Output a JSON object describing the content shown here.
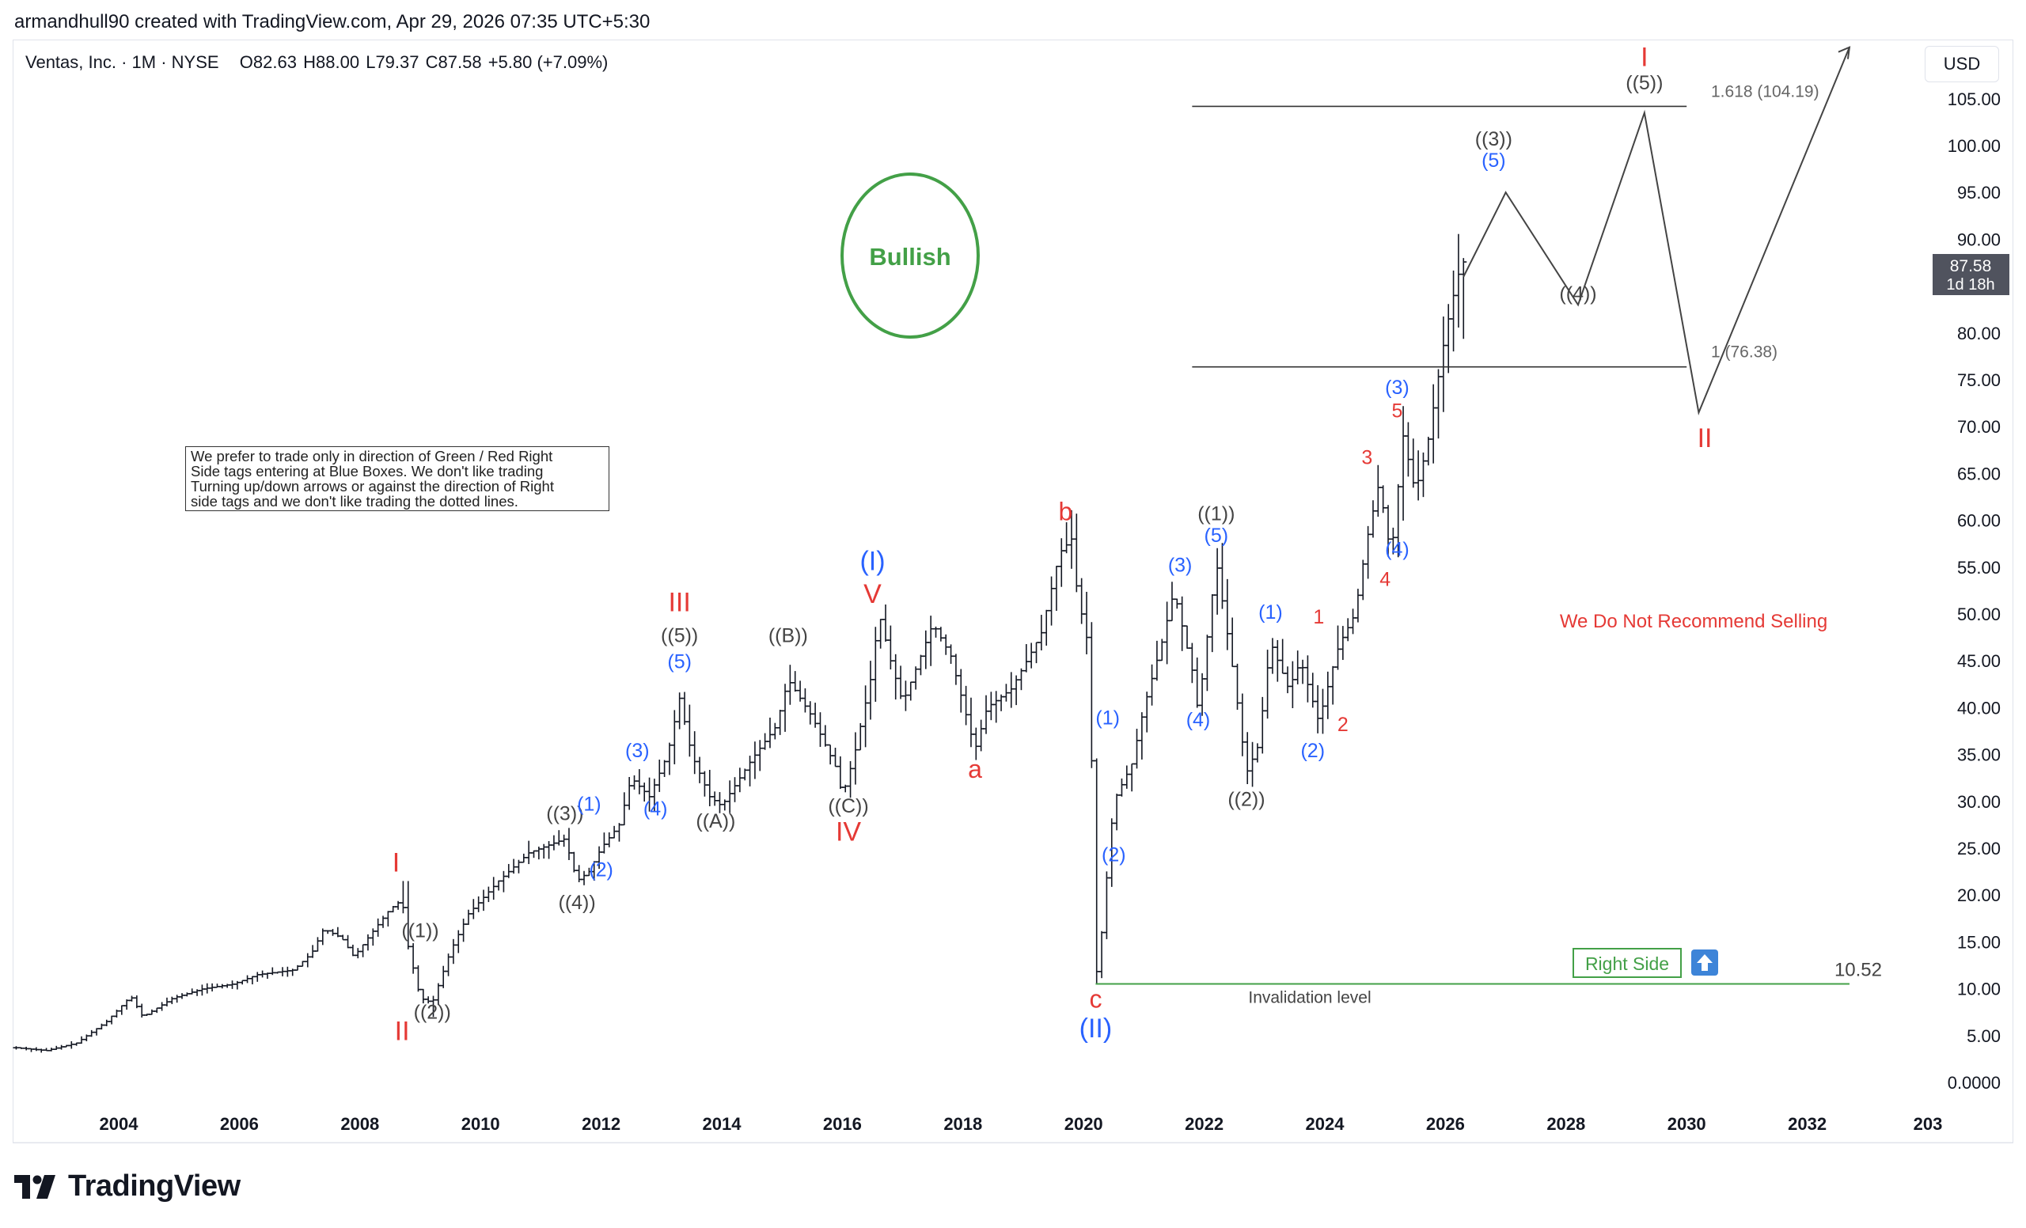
{
  "header": {
    "attribution": "armandhull90 created with TradingView.com, Apr 29, 2026 07:35 UTC+5:30"
  },
  "symbol": {
    "name": "Ventas, Inc. · 1M · NYSE",
    "open_label": "O",
    "open": "82.63",
    "high_label": "H",
    "high": "88.00",
    "low_label": "L",
    "low": "79.37",
    "close_label": "C",
    "close": "87.58",
    "change": "+5.80 (+7.09%)"
  },
  "currency": "USD",
  "footer": {
    "brand": "TradingView"
  },
  "note_lines": [
    "We prefer to trade only in direction of Green / Red Right",
    "Side tags entering at Blue Boxes. We don't like trading",
    "Turning up/down arrows or against the direction of Right",
    "side tags and we don't like trading the dotted lines."
  ],
  "chart_data": {
    "type": "ohlc",
    "title": "Ventas, Inc. · 1M · NYSE",
    "x_ticks": [
      "2004",
      "2006",
      "2008",
      "2010",
      "2012",
      "2014",
      "2016",
      "2018",
      "2020",
      "2022",
      "2024",
      "2026",
      "2028",
      "2030",
      "2032",
      "203"
    ],
    "y_ticks": [
      "105.00",
      "100.00",
      "95.00",
      "90.00",
      "80.00",
      "75.00",
      "70.00",
      "65.00",
      "60.00",
      "55.00",
      "50.00",
      "45.00",
      "40.00",
      "35.00",
      "30.00",
      "25.00",
      "20.00",
      "15.00",
      "10.00",
      "5.00",
      "0.0000"
    ],
    "ylim": [
      -1.2,
      111.5
    ],
    "price_series": [
      [
        2002.3,
        3.7
      ],
      [
        2002.8,
        3.4
      ],
      [
        2003.3,
        4.2
      ],
      [
        2003.8,
        6.5
      ],
      [
        2004.2,
        9.2
      ],
      [
        2004.4,
        7.0
      ],
      [
        2004.9,
        9.0
      ],
      [
        2005.4,
        10.0
      ],
      [
        2005.9,
        10.5
      ],
      [
        2006.3,
        11.5
      ],
      [
        2006.9,
        12.0
      ],
      [
        2007.2,
        13.8
      ],
      [
        2007.4,
        16.4
      ],
      [
        2007.7,
        15.4
      ],
      [
        2007.9,
        13.4
      ],
      [
        2008.2,
        16.0
      ],
      [
        2008.5,
        18.5
      ],
      [
        2008.7,
        19.5
      ],
      [
        2008.8,
        14.5
      ],
      [
        2009.0,
        9.0
      ],
      [
        2009.2,
        8.5
      ],
      [
        2009.5,
        14.0
      ],
      [
        2009.8,
        18.0
      ],
      [
        2010.3,
        21.5
      ],
      [
        2010.8,
        24.5
      ],
      [
        2011.2,
        25.5
      ],
      [
        2011.4,
        26.0
      ],
      [
        2011.6,
        21.5
      ],
      [
        2011.8,
        22.5
      ],
      [
        2012.0,
        25.0
      ],
      [
        2012.3,
        27.5
      ],
      [
        2012.5,
        32.5
      ],
      [
        2012.8,
        30.5
      ],
      [
        2013.1,
        35.0
      ],
      [
        2013.3,
        41.0
      ],
      [
        2013.5,
        35.0
      ],
      [
        2013.8,
        30.5
      ],
      [
        2014.0,
        29.5
      ],
      [
        2014.5,
        34.5
      ],
      [
        2014.9,
        38.0
      ],
      [
        2015.1,
        43.0
      ],
      [
        2015.5,
        39.0
      ],
      [
        2015.9,
        33.5
      ],
      [
        2016.0,
        30.5
      ],
      [
        2016.2,
        35.0
      ],
      [
        2016.5,
        44.0
      ],
      [
        2016.6,
        50.3
      ],
      [
        2016.8,
        45.0
      ],
      [
        2017.0,
        40.5
      ],
      [
        2017.3,
        45.5
      ],
      [
        2017.5,
        49.0
      ],
      [
        2017.8,
        45.5
      ],
      [
        2018.0,
        40.5
      ],
      [
        2018.2,
        35.5
      ],
      [
        2018.4,
        40.0
      ],
      [
        2018.8,
        42.0
      ],
      [
        2019.1,
        45.5
      ],
      [
        2019.3,
        48.0
      ],
      [
        2019.6,
        56.5
      ],
      [
        2019.8,
        58.0
      ],
      [
        2019.9,
        52.0
      ],
      [
        2020.1,
        46.0
      ],
      [
        2020.2,
        11.0
      ],
      [
        2020.3,
        16.0
      ],
      [
        2020.5,
        30.0
      ],
      [
        2020.8,
        34.0
      ],
      [
        2021.0,
        40.0
      ],
      [
        2021.3,
        47.0
      ],
      [
        2021.5,
        52.5
      ],
      [
        2021.8,
        44.0
      ],
      [
        2021.9,
        39.5
      ],
      [
        2022.2,
        55.6
      ],
      [
        2022.5,
        43.0
      ],
      [
        2022.7,
        33.0
      ],
      [
        2022.9,
        36.0
      ],
      [
        2023.1,
        47.0
      ],
      [
        2023.4,
        42.0
      ],
      [
        2023.6,
        45.0
      ],
      [
        2023.9,
        38.5
      ],
      [
        2024.2,
        46.0
      ],
      [
        2024.3,
        47.5
      ],
      [
        2024.5,
        50.0
      ],
      [
        2024.7,
        58.0
      ],
      [
        2024.9,
        64.0
      ],
      [
        2025.1,
        56.0
      ],
      [
        2025.3,
        69.0
      ],
      [
        2025.5,
        63.0
      ],
      [
        2025.7,
        68.0
      ],
      [
        2025.9,
        76.0
      ],
      [
        2026.0,
        80.0
      ],
      [
        2026.2,
        86.0
      ],
      [
        2026.3,
        87.58
      ]
    ],
    "projection_path": [
      [
        2026.3,
        86.0
      ],
      [
        2027.0,
        95.0
      ],
      [
        2028.2,
        83.0
      ],
      [
        2029.3,
        103.5
      ],
      [
        2030.2,
        71.5
      ],
      [
        2032.7,
        110.5
      ]
    ],
    "hlines": [
      {
        "label": "1.618 (104.19)",
        "value": 104.19
      },
      {
        "label": "1 (76.38)",
        "value": 76.38
      },
      {
        "label": "Invalidation level",
        "value": 10.52,
        "value_label": "10.52"
      }
    ],
    "last_price": "87.58",
    "countdown": "1d 18h",
    "annotations": {
      "bullish": "Bullish",
      "no_sell": "We Do Not Recommend Selling",
      "right_side": "Right Side",
      "waves": [
        {
          "t": "I",
          "c": "red",
          "x": 2008.6,
          "y": 22.5
        },
        {
          "t": "II",
          "c": "red",
          "x": 2008.7,
          "y": 4.5
        },
        {
          "t": "((1))",
          "c": "gray",
          "x": 2009.0,
          "y": 15.5
        },
        {
          "t": "((2))",
          "c": "gray",
          "x": 2009.2,
          "y": 6.8
        },
        {
          "t": "((3))",
          "c": "gray",
          "x": 2011.4,
          "y": 28.0
        },
        {
          "t": "((4))",
          "c": "gray",
          "x": 2011.6,
          "y": 18.5
        },
        {
          "t": "(1)",
          "c": "blue",
          "x": 2011.8,
          "y": 29.0
        },
        {
          "t": "(2)",
          "c": "blue",
          "x": 2012.0,
          "y": 22.0
        },
        {
          "t": "(3)",
          "c": "blue",
          "x": 2012.6,
          "y": 34.7
        },
        {
          "t": "(4)",
          "c": "blue",
          "x": 2012.9,
          "y": 28.5
        },
        {
          "t": "(5)",
          "c": "blue",
          "x": 2013.3,
          "y": 44.2
        },
        {
          "t": "((5))",
          "c": "gray",
          "x": 2013.3,
          "y": 47.0
        },
        {
          "t": "III",
          "c": "red",
          "x": 2013.3,
          "y": 50.3
        },
        {
          "t": "((A))",
          "c": "gray",
          "x": 2013.9,
          "y": 27.2
        },
        {
          "t": "((B))",
          "c": "gray",
          "x": 2015.1,
          "y": 47.0
        },
        {
          "t": "((C))",
          "c": "gray",
          "x": 2016.1,
          "y": 28.8
        },
        {
          "t": "IV",
          "c": "red",
          "x": 2016.1,
          "y": 25.8
        },
        {
          "t": "V",
          "c": "red",
          "x": 2016.5,
          "y": 51.2
        },
        {
          "t": "(I)",
          "c": "blue",
          "x": 2016.5,
          "y": 54.7
        },
        {
          "t": "a",
          "c": "red",
          "x": 2018.2,
          "y": 32.5
        },
        {
          "t": "b",
          "c": "red",
          "x": 2019.7,
          "y": 60.0
        },
        {
          "t": "c",
          "c": "red",
          "x": 2020.2,
          "y": 8.0
        },
        {
          "t": "(II)",
          "c": "blue",
          "x": 2020.2,
          "y": 4.8
        },
        {
          "t": "(1)",
          "c": "blue",
          "x": 2020.4,
          "y": 38.2
        },
        {
          "t": "(2)",
          "c": "blue",
          "x": 2020.5,
          "y": 23.6
        },
        {
          "t": "(3)",
          "c": "blue",
          "x": 2021.6,
          "y": 54.5
        },
        {
          "t": "(4)",
          "c": "blue",
          "x": 2021.9,
          "y": 38.0
        },
        {
          "t": "(5)",
          "c": "blue",
          "x": 2022.2,
          "y": 57.7
        },
        {
          "t": "((1))",
          "c": "gray",
          "x": 2022.2,
          "y": 60.0
        },
        {
          "t": "((2))",
          "c": "gray",
          "x": 2022.7,
          "y": 29.5
        },
        {
          "t": "(1)",
          "c": "blue",
          "x": 2023.1,
          "y": 49.5
        },
        {
          "t": "(2)",
          "c": "blue",
          "x": 2023.8,
          "y": 34.7
        },
        {
          "t": "1",
          "c": "red",
          "x": 2023.9,
          "y": 49.0
        },
        {
          "t": "2",
          "c": "red",
          "x": 2024.3,
          "y": 37.5
        },
        {
          "t": "3",
          "c": "red",
          "x": 2024.7,
          "y": 66.0
        },
        {
          "t": "4",
          "c": "red",
          "x": 2025.0,
          "y": 53.0
        },
        {
          "t": "(4)",
          "c": "blue",
          "x": 2025.2,
          "y": 56.2
        },
        {
          "t": "5",
          "c": "red",
          "x": 2025.2,
          "y": 71.0
        },
        {
          "t": "(3)",
          "c": "blue",
          "x": 2025.2,
          "y": 73.5
        },
        {
          "t": "(5)",
          "c": "blue",
          "x": 2026.8,
          "y": 97.7
        },
        {
          "t": "((3))",
          "c": "gray",
          "x": 2026.8,
          "y": 100.0
        },
        {
          "t": "((4))",
          "c": "gray",
          "x": 2028.2,
          "y": 83.5
        },
        {
          "t": "((5))",
          "c": "gray",
          "x": 2029.3,
          "y": 106.0
        },
        {
          "t": "I",
          "c": "red",
          "x": 2029.3,
          "y": 108.5
        },
        {
          "t": "II",
          "c": "red",
          "x": 2030.3,
          "y": 67.8
        }
      ]
    }
  }
}
